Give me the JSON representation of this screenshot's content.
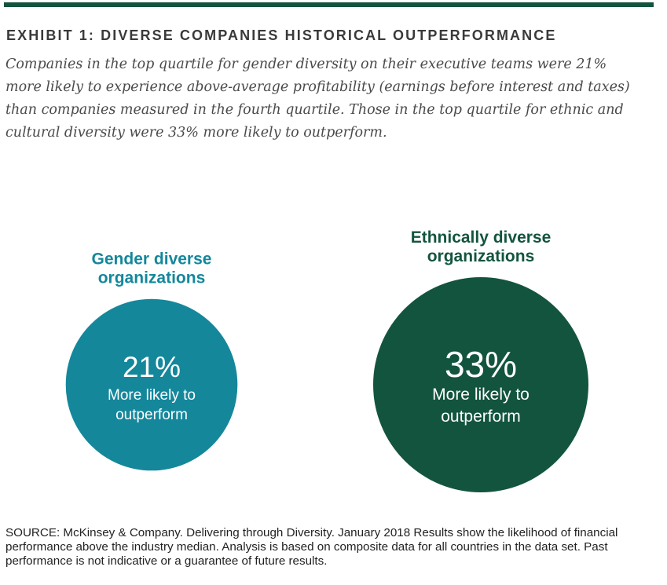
{
  "header": {
    "exhibit_title": "EXHIBIT 1: DIVERSE COMPANIES HISTORICAL OUTPERFORMANCE",
    "subtitle": "Companies in the top quartile for gender diversity on their executive teams were 21% more likely to experience above-average profitability (earnings before interest and taxes) than companies measured in the fourth quartile. Those in the top quartile for ethnic and cultural diversity were 33% more likely to outperform."
  },
  "colors": {
    "rule": "#13543f",
    "gender": "#14879b",
    "ethnic": "#13543f",
    "text_on_circle": "#ffffff"
  },
  "chart_data": {
    "type": "bubble",
    "items": [
      {
        "label_lines": [
          "Gender diverse",
          "organizations"
        ],
        "value": 21,
        "value_label": "21%",
        "desc_lines": [
          "More likely to",
          "outperform"
        ],
        "color": "#14879b"
      },
      {
        "label_lines": [
          "Ethnically diverse",
          "organizations"
        ],
        "value": 33,
        "value_label": "33%",
        "desc_lines": [
          "More likely to",
          "outperform"
        ],
        "color": "#13543f"
      }
    ]
  },
  "footer": {
    "source": "SOURCE: McKinsey & Company. Delivering through Diversity. January 2018 Results show the likelihood of financial performance above the industry median. Analysis is based on composite data for all countries in the data set. Past performance is not indicative or a guarantee of future results."
  }
}
